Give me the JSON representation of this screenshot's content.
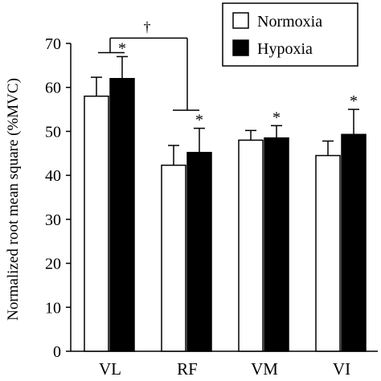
{
  "chart_data": {
    "type": "bar",
    "categories": [
      "VL",
      "RF",
      "VM",
      "VI"
    ],
    "series": [
      {
        "name": "Normoxia",
        "values": [
          58,
          42.3,
          48,
          44.5
        ],
        "errors": [
          4.3,
          4.5,
          2.2,
          3.3
        ],
        "color": "#ffffff"
      },
      {
        "name": "Hypoxia",
        "values": [
          62,
          45.2,
          48.5,
          49.3
        ],
        "errors": [
          5,
          5.5,
          2.8,
          5.7
        ],
        "color": "#000000"
      }
    ],
    "ylabel": "Normalized root mean square (%MVC)",
    "ylim": [
      0,
      70
    ],
    "yticks": [
      0,
      10,
      20,
      30,
      40,
      50,
      60,
      70
    ],
    "legend_position": "top-right",
    "annotations": {
      "significance_marker": "*",
      "marked_categories": [
        "VL",
        "RF",
        "VM",
        "VI"
      ],
      "dagger_marker": "†",
      "dagger_between": [
        "VL",
        "RF"
      ]
    }
  }
}
